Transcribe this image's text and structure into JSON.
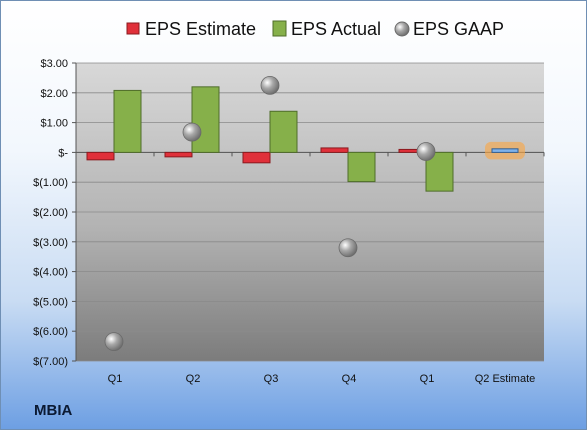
{
  "company": "MBIA",
  "chart_data": {
    "type": "bar",
    "categories": [
      "Q1",
      "Q2",
      "Q3",
      "Q4",
      "Q1",
      "Q2 Estimate"
    ],
    "series": [
      {
        "name": "EPS Estimate",
        "values": [
          -0.25,
          -0.15,
          -0.35,
          0.15,
          0.1,
          0.12
        ]
      },
      {
        "name": "EPS Actual",
        "values": [
          2.08,
          2.2,
          1.38,
          -0.98,
          -1.3,
          null
        ]
      },
      {
        "name": "EPS GAAP",
        "values": [
          -6.35,
          0.68,
          2.25,
          -3.2,
          0.03,
          null
        ]
      }
    ],
    "ylim": [
      -7,
      3
    ],
    "yticks": [
      3,
      2,
      1,
      0,
      -1,
      -2,
      -3,
      -4,
      -5,
      -6,
      -7
    ],
    "ytick_labels": [
      "$3.00",
      "$2.00",
      "$1.00",
      "$-",
      "$(1.00)",
      "$(2.00)",
      "$(3.00)",
      "$(4.00)",
      "$(5.00)",
      "$(6.00)",
      "$(7.00)"
    ],
    "grid": true,
    "legend_position": "top",
    "colors": {
      "estimate": "#e0303a",
      "actual": "#86b04a",
      "gaap": "#a8a8a8",
      "future_estimate": "#7fb2ea",
      "future_glow": "#f7a84a"
    },
    "title": "",
    "xlabel": "",
    "ylabel": ""
  }
}
